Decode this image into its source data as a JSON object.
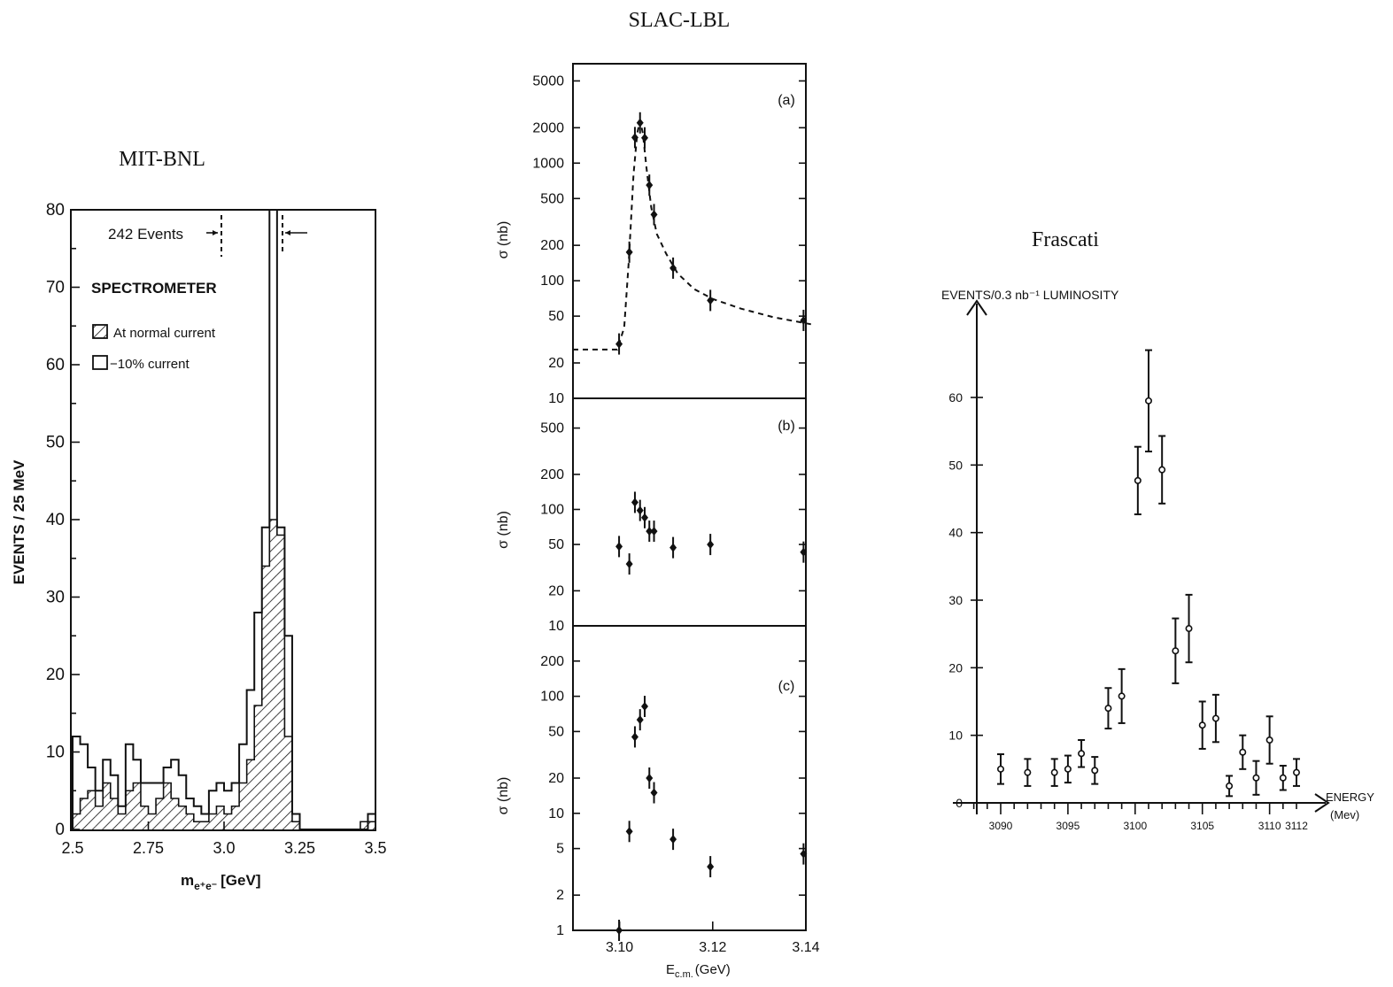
{
  "chart_data": [
    {
      "id": "mit",
      "type": "bar",
      "title": "MIT-BNL",
      "xlabel": "m",
      "xlabel_sub": "e⁺e⁻",
      "xlabel_unit": "[GeV]",
      "ylabel": "EVENTS / 25 MeV",
      "xlim": [
        2.5,
        3.5
      ],
      "ylim": [
        0,
        80
      ],
      "xticks": [
        2.5,
        2.75,
        3.0,
        3.25,
        3.5
      ],
      "xtick_labels": [
        "2.5",
        "2.75",
        "3.0",
        "3.25",
        "3.5"
      ],
      "yticks": [
        0,
        10,
        20,
        30,
        40,
        50,
        60,
        70,
        80
      ],
      "annotation": "242 Events",
      "legend_title": "SPECTROMETER",
      "bin_width": 0.025,
      "series": [
        {
          "name": "−10% current",
          "style": "open",
          "values": [
            12,
            11,
            8,
            5,
            9,
            7,
            3,
            11,
            9,
            6,
            6,
            6,
            8,
            9,
            7,
            4,
            3,
            2,
            5,
            6,
            5,
            6,
            11,
            18,
            28,
            39,
            80,
            39,
            25,
            2,
            0,
            0,
            0,
            0,
            0,
            0,
            0,
            0,
            0,
            2
          ]
        },
        {
          "name": "At normal current",
          "style": "hatched",
          "values": [
            2,
            4,
            5,
            3,
            6,
            4,
            2,
            5,
            6,
            3,
            2,
            4,
            6,
            4,
            3,
            2,
            1,
            1,
            2,
            3,
            2,
            3,
            6,
            9,
            16,
            34,
            40,
            38,
            12,
            1,
            0,
            0,
            0,
            0,
            0,
            0,
            0,
            0,
            1,
            1
          ]
        }
      ]
    },
    {
      "id": "slac",
      "type": "scatter",
      "title": "SLAC-LBL",
      "xlabel": "E",
      "xlabel_sub": "c.m.",
      "xlabel_unit": "(GeV)",
      "xlim": [
        3.09,
        3.14
      ],
      "xticks": [
        3.1,
        3.12,
        3.14
      ],
      "xtick_labels": [
        "3.10",
        "3.12",
        "3.14"
      ],
      "panels": [
        {
          "label": "(a)",
          "ylabel": "σ (nb)",
          "ylim": [
            10,
            7000
          ],
          "scale": "log",
          "yticks": [
            10,
            20,
            50,
            100,
            200,
            500,
            1000,
            2000,
            5000
          ],
          "points": [
            [
              3.0999,
              29
            ],
            [
              3.1021,
              175
            ],
            [
              3.1033,
              1650
            ],
            [
              3.1044,
              2200
            ],
            [
              3.1054,
              1640
            ],
            [
              3.1064,
              650
            ],
            [
              3.1074,
              365
            ],
            [
              3.1115,
              128
            ],
            [
              3.1195,
              68
            ],
            [
              3.1395,
              46
            ]
          ],
          "fit_curve": [
            [
              3.09,
              26
            ],
            [
              3.0995,
              26
            ],
            [
              3.101,
              40
            ],
            [
              3.102,
              150
            ],
            [
              3.103,
              800
            ],
            [
              3.1038,
              1800
            ],
            [
              3.1044,
              2300
            ],
            [
              3.105,
              1800
            ],
            [
              3.1058,
              900
            ],
            [
              3.1068,
              420
            ],
            [
              3.108,
              250
            ],
            [
              3.11,
              170
            ],
            [
              3.1125,
              115
            ],
            [
              3.116,
              85
            ],
            [
              3.12,
              70
            ],
            [
              3.126,
              58
            ],
            [
              3.133,
              49
            ],
            [
              3.142,
              42
            ]
          ]
        },
        {
          "label": "(b)",
          "ylabel": "σ (nb)",
          "ylim": [
            10,
            900
          ],
          "scale": "log",
          "yticks": [
            10,
            20,
            50,
            100,
            200,
            500
          ],
          "points": [
            [
              3.0999,
              48
            ],
            [
              3.1021,
              34
            ],
            [
              3.1033,
              115
            ],
            [
              3.1044,
              98
            ],
            [
              3.1054,
              85
            ],
            [
              3.1064,
              65
            ],
            [
              3.1074,
              65
            ],
            [
              3.1115,
              47
            ],
            [
              3.1195,
              50
            ],
            [
              3.1395,
              43
            ]
          ]
        },
        {
          "label": "(c)",
          "ylabel": "σ (nb)",
          "ylim": [
            1,
            400
          ],
          "scale": "log",
          "yticks": [
            1,
            2,
            5,
            10,
            20,
            50,
            100,
            200
          ],
          "ytick_labels": [
            "1",
            "2",
            "5",
            "10",
            "20",
            "50",
            "100",
            "200"
          ],
          "points": [
            [
              3.0999,
              1
            ],
            [
              3.1021,
              7
            ],
            [
              3.1033,
              45
            ],
            [
              3.1044,
              63
            ],
            [
              3.1054,
              82
            ],
            [
              3.1064,
              20
            ],
            [
              3.1074,
              15
            ],
            [
              3.1115,
              6
            ],
            [
              3.1195,
              3.5
            ],
            [
              3.1395,
              4.5
            ]
          ]
        }
      ]
    },
    {
      "id": "frascati",
      "type": "scatter",
      "title": "Frascati",
      "ylabel": "EVENTS/0.3 nb⁻¹ LUMINOSITY",
      "xlabel": "ENERGY",
      "xlabel_unit": "(Mev)",
      "xlim": [
        3088,
        3112
      ],
      "ylim": [
        0,
        60
      ],
      "xticks": [
        3090,
        3095,
        3100,
        3105,
        3110,
        3112
      ],
      "xtick_labels": [
        "3090",
        "3095",
        "3100",
        "3105",
        "3110",
        "3112"
      ],
      "yticks": [
        0,
        10,
        20,
        30,
        40,
        50,
        60
      ],
      "points": [
        [
          3090,
          5,
          2.2
        ],
        [
          3092,
          4.5,
          2
        ],
        [
          3094,
          4.5,
          2
        ],
        [
          3095,
          5,
          2
        ],
        [
          3096,
          7.3,
          2
        ],
        [
          3097,
          4.8,
          2
        ],
        [
          3098,
          14,
          3
        ],
        [
          3099,
          15.8,
          4
        ],
        [
          3100.2,
          47.7,
          5
        ],
        [
          3101,
          59.5,
          7.5
        ],
        [
          3102,
          49.3,
          5
        ],
        [
          3103,
          22.5,
          4.8
        ],
        [
          3104,
          25.8,
          5
        ],
        [
          3105,
          11.5,
          3.5
        ],
        [
          3106,
          12.5,
          3.5
        ],
        [
          3107,
          2.5,
          1.5
        ],
        [
          3108,
          7.5,
          2.5
        ],
        [
          3109,
          3.7,
          2.5
        ],
        [
          3110,
          9.3,
          3.5
        ],
        [
          3111,
          3.7,
          1.8
        ],
        [
          3112,
          4.5,
          2
        ]
      ]
    }
  ]
}
